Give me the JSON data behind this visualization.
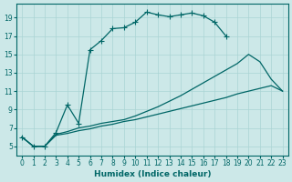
{
  "xlabel": "Humidex (Indice chaleur)",
  "background_color": "#cce8e8",
  "grid_color": "#aad4d4",
  "line_color": "#006666",
  "xlim": [
    -0.5,
    23.5
  ],
  "ylim": [
    4,
    20.5
  ],
  "xticks": [
    0,
    1,
    2,
    3,
    4,
    5,
    6,
    7,
    8,
    9,
    10,
    11,
    12,
    13,
    14,
    15,
    16,
    17,
    18,
    19,
    20,
    21,
    22,
    23
  ],
  "yticks": [
    5,
    7,
    9,
    11,
    13,
    15,
    17,
    19
  ],
  "upper_x": [
    0,
    1,
    2,
    3,
    4,
    5,
    6,
    7,
    8,
    9,
    10,
    11,
    12,
    13,
    14,
    15,
    16,
    17,
    18
  ],
  "upper_y": [
    6.0,
    5.0,
    5.0,
    6.5,
    9.5,
    7.5,
    15.5,
    16.5,
    17.8,
    17.9,
    18.5,
    19.6,
    19.3,
    19.1,
    19.3,
    19.5,
    19.2,
    18.5,
    17.0
  ],
  "mid_x": [
    0,
    1,
    2,
    3,
    4,
    5,
    6,
    7,
    8,
    9,
    10,
    11,
    12,
    13,
    14,
    15,
    16,
    17,
    18,
    19,
    20,
    21,
    22,
    23
  ],
  "mid_y": [
    6.0,
    5.0,
    5.0,
    6.3,
    6.6,
    7.0,
    7.2,
    7.5,
    7.7,
    7.9,
    8.3,
    8.8,
    9.3,
    9.9,
    10.5,
    11.2,
    11.9,
    12.6,
    13.3,
    14.0,
    15.0,
    14.2,
    12.3,
    11.0
  ],
  "low_x": [
    0,
    1,
    2,
    3,
    4,
    5,
    6,
    7,
    8,
    9,
    10,
    11,
    12,
    13,
    14,
    15,
    16,
    17,
    18,
    19,
    20,
    21,
    22,
    23
  ],
  "low_y": [
    6.0,
    5.0,
    5.0,
    6.2,
    6.4,
    6.7,
    6.9,
    7.2,
    7.4,
    7.7,
    7.9,
    8.2,
    8.5,
    8.8,
    9.1,
    9.4,
    9.7,
    10.0,
    10.3,
    10.7,
    11.0,
    11.3,
    11.6,
    11.0
  ]
}
